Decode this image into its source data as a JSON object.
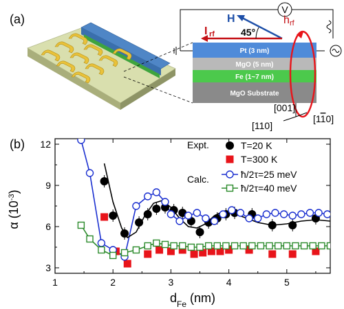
{
  "panel_a": {
    "label": "(a)",
    "layers": [
      "Pt  (3 nm)",
      "MgO  (5 nm)",
      "Fe  (1~7 nm)",
      "MgO Substrate"
    ],
    "field_labels": {
      "H": "H",
      "h_rf": "h",
      "h_rf_sub": "rf",
      "I_rf": "I",
      "I_rf_sub": "rf",
      "angle": "45°",
      "voltmeter": "V"
    },
    "directions": {
      "d001": "[001]",
      "d110": "[110]",
      "d1m10": "[1",
      "d1m10_tail": "0]",
      "bar": "1"
    }
  },
  "panel_b": {
    "label": "(b)",
    "y_label_main": "α (10",
    "y_label_exp": "-3",
    "x_label_main": "d",
    "x_label_sub": "Fe",
    "x_label_unit": " (nm)"
  },
  "chart_data": {
    "type": "scatter",
    "xlabel": "dFe (nm)",
    "ylabel": "α (10^-3)",
    "xlim": [
      1,
      5.75
    ],
    "ylim": [
      2.6,
      12.4
    ],
    "xticks": [
      1,
      2,
      3,
      4,
      5
    ],
    "yticks": [
      3,
      6,
      9,
      12
    ],
    "legend_groups": [
      "Expt.",
      "Calc."
    ],
    "series": [
      {
        "name": "T=20 K",
        "marker": "filled-circle",
        "color": "#000000",
        "x": [
          1.85,
          2.0,
          2.2,
          2.45,
          2.6,
          2.75,
          2.9,
          3.05,
          3.2,
          3.35,
          3.5,
          3.65,
          3.8,
          3.95,
          4.1,
          4.4,
          4.75,
          5.1,
          5.5
        ],
        "y": [
          9.3,
          6.8,
          5.5,
          6.3,
          6.9,
          7.3,
          7.4,
          7.2,
          7.0,
          6.4,
          5.6,
          6.3,
          6.6,
          6.9,
          7.0,
          6.9,
          6.1,
          6.1,
          6.6
        ]
      },
      {
        "name": "T=300 K",
        "marker": "filled-square",
        "color": "#e8141a",
        "x": [
          1.85,
          2.05,
          2.25,
          2.6,
          2.8,
          3.0,
          3.2,
          3.4,
          3.55,
          3.7,
          3.85,
          4.0,
          4.35,
          4.75,
          5.1,
          5.5
        ],
        "y": [
          6.7,
          4.2,
          3.3,
          4.0,
          4.3,
          4.2,
          4.3,
          4.0,
          4.1,
          4.2,
          4.2,
          4.3,
          4.3,
          4.0,
          4.0,
          4.2
        ]
      },
      {
        "name": "ħ/2τ=25 meV",
        "marker": "open-circle",
        "color": "#1a2fd0",
        "x": [
          1.45,
          1.6,
          1.8,
          2.0,
          2.2,
          2.4,
          2.6,
          2.75,
          2.9,
          3.0,
          3.15,
          3.3,
          3.45,
          3.6,
          3.75,
          3.9,
          4.05,
          4.2,
          4.35,
          4.5,
          4.65,
          4.8,
          4.95,
          5.1,
          5.25,
          5.4,
          5.55,
          5.7
        ],
        "y": [
          12.3,
          9.9,
          4.8,
          4.3,
          3.8,
          7.5,
          8.2,
          8.5,
          7.8,
          6.9,
          6.4,
          6.8,
          7.0,
          6.6,
          6.4,
          6.9,
          7.2,
          7.0,
          6.6,
          6.6,
          6.9,
          7.0,
          6.9,
          6.8,
          6.9,
          7.0,
          7.0,
          6.9
        ]
      },
      {
        "name": "ħ/2τ=40 meV",
        "marker": "open-square",
        "color": "#2b8a2b",
        "x": [
          1.45,
          1.6,
          1.8,
          2.0,
          2.2,
          2.4,
          2.6,
          2.75,
          2.9,
          3.05,
          3.2,
          3.35,
          3.5,
          3.65,
          3.8,
          3.95,
          4.1,
          4.25,
          4.4,
          4.55,
          4.7,
          4.85,
          5.0,
          5.15,
          5.3,
          5.45,
          5.6,
          5.75
        ],
        "y": [
          6.1,
          5.1,
          4.3,
          3.9,
          4.1,
          4.3,
          4.6,
          4.8,
          4.7,
          4.6,
          4.6,
          4.5,
          4.5,
          4.6,
          4.6,
          4.6,
          4.6,
          4.6,
          4.6,
          4.6,
          4.6,
          4.6,
          4.6,
          4.6,
          4.6,
          4.6,
          4.6,
          4.6
        ]
      }
    ],
    "fit_curve": {
      "x": [
        1.85,
        2.0,
        2.15,
        2.25,
        2.4,
        2.55,
        2.7,
        2.85,
        3.0,
        3.15,
        3.3,
        3.45,
        3.6,
        3.75,
        3.9,
        4.05,
        4.25,
        4.5,
        4.75,
        5.0,
        5.25,
        5.5,
        5.75
      ],
      "y": [
        10.6,
        7.8,
        5.9,
        5.2,
        5.6,
        6.8,
        7.7,
        7.9,
        7.4,
        6.6,
        6.0,
        5.9,
        6.2,
        6.8,
        7.1,
        7.0,
        6.7,
        6.3,
        6.1,
        6.2,
        6.4,
        6.5,
        6.4
      ]
    }
  }
}
